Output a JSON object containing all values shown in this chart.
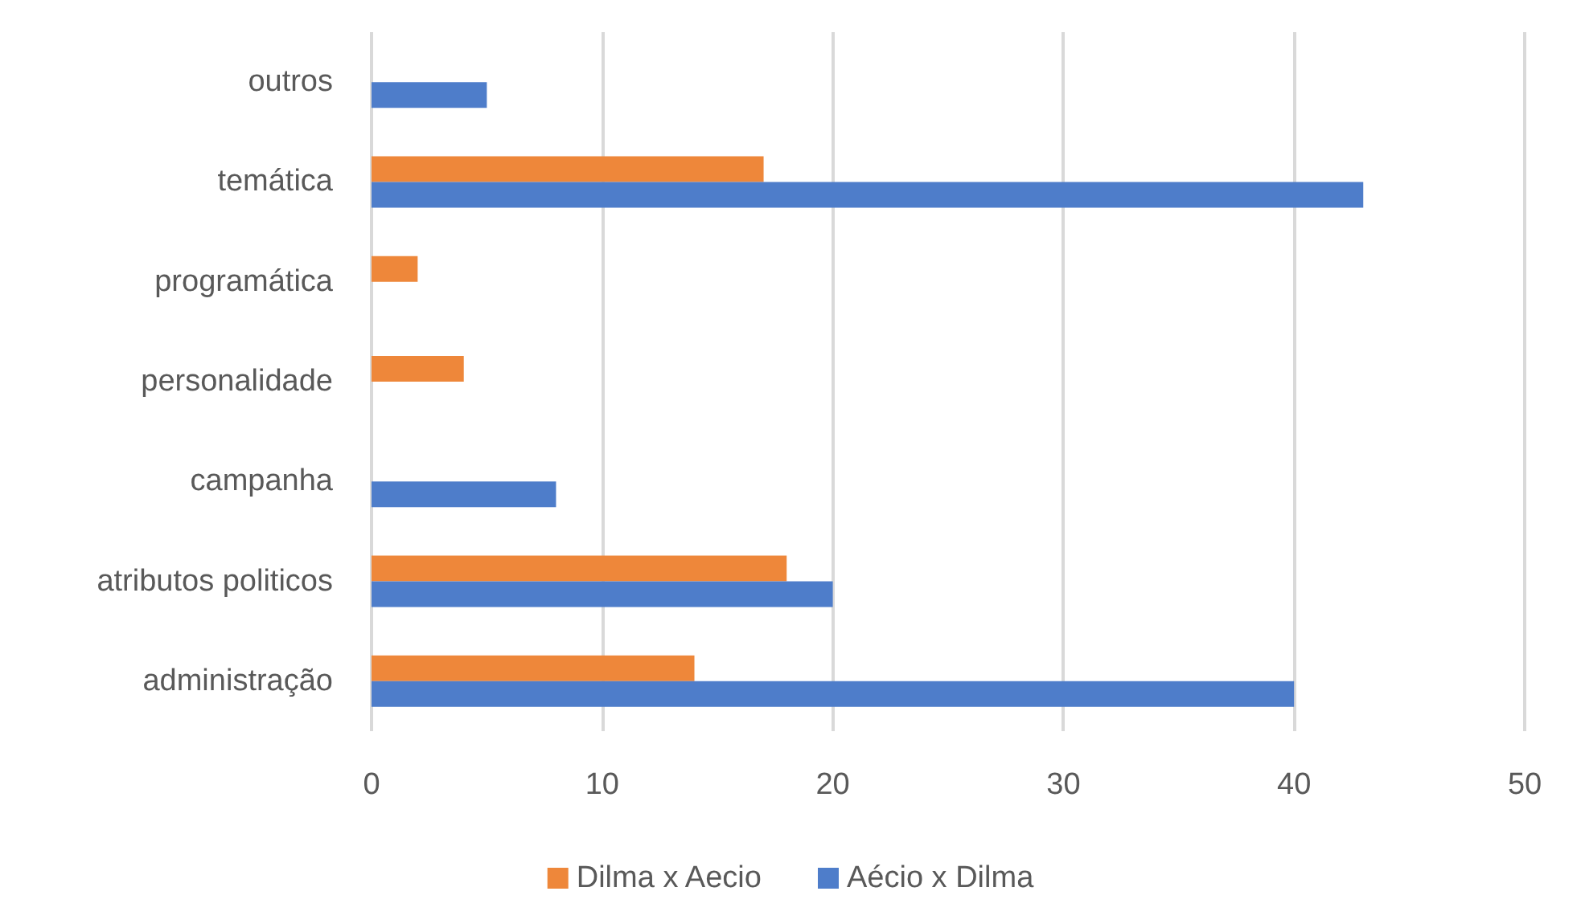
{
  "chart_data": {
    "type": "bar",
    "orientation": "horizontal",
    "categories": [
      "outros",
      "temática",
      "programática",
      "personalidade",
      "campanha",
      "atributos politicos",
      "administração"
    ],
    "series": [
      {
        "name": "Dilma x Aecio",
        "color": "#ee873a",
        "values": [
          null,
          17,
          2,
          4,
          null,
          18,
          14
        ]
      },
      {
        "name": "Aécio x Dilma",
        "color": "#4e7dca",
        "values": [
          5,
          43,
          null,
          null,
          8,
          20,
          40
        ]
      }
    ],
    "xlim": [
      0,
      50
    ],
    "xticks": [
      0,
      10,
      20,
      30,
      40,
      50
    ],
    "grid": "x",
    "legend": "bottom"
  }
}
